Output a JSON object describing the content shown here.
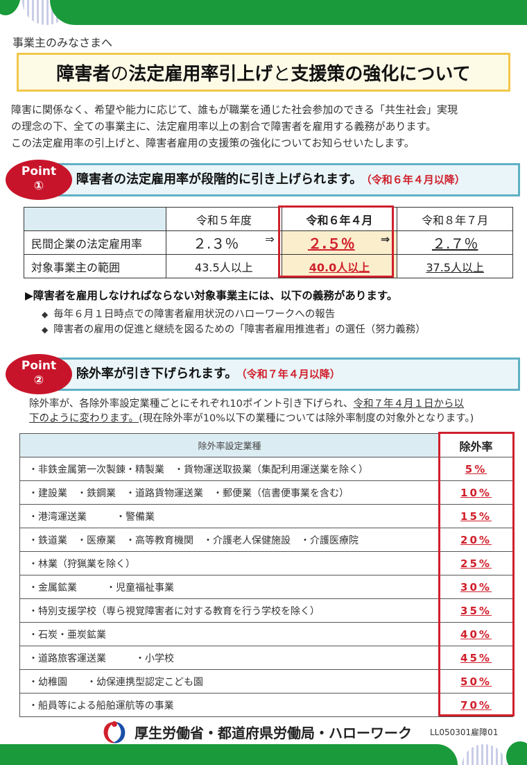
{
  "colors": {
    "brand_green": "#1a9a3a",
    "accent_red": "#d0202c",
    "title_border": "#f2c64a",
    "point_bar_border": "#5fb0c4"
  },
  "header": {
    "greeting": "事業主のみなさまへ",
    "title_part1": "障害者",
    "title_part2": "の",
    "title_part3": "法定雇用率引上げ",
    "title_part4": "と",
    "title_part5": "支援策の強化について"
  },
  "intro": {
    "line1": "障害に関係なく、希望や能力に応じて、誰もが職業を通じた社会参加のできる「共生社会」実現",
    "line2": "の理念の下、全ての事業主に、法定雇用率以上の割合で障害者を雇用する義務があります。",
    "line3": "この法定雇用率の引上げと、障害者雇用の支援策の強化についてお知らせいたします。"
  },
  "point1": {
    "badge_word": "Point",
    "badge_number": "①",
    "heading": "障害者の法定雇用率が段階的に引き上げられます。",
    "date": "（令和６年４月以降）"
  },
  "rate_table": {
    "columns": [
      "令和５年度",
      "令和６年４月",
      "令和８年７月"
    ],
    "row1_label": "民間企業の法定雇用率",
    "row1_values": [
      "２.３％",
      "２.５％",
      "２.７％"
    ],
    "arrow": "⇒",
    "row2_label": "対象事業主の範囲",
    "row2_values": [
      "43.5人以上",
      "40.0人以上",
      "37.5人以上"
    ]
  },
  "duties": {
    "heading": "▶障害者を雇用しなければならない対象事業主には、以下の義務があります。",
    "items": [
      "毎年６月１日時点での障害者雇用状況のハローワークへの報告",
      "障害者の雇用の促進と継続を図るための「障害者雇用推進者」の選任（努力義務）"
    ]
  },
  "point2": {
    "badge_word": "Point",
    "badge_number": "②",
    "heading": "除外率が引き下げられます。",
    "date": "（令和７年４月以降）"
  },
  "exclusion_intro": {
    "part1": "除外率が、各除外率設定業種ごとにそれぞれ10ポイント引き下げられ、",
    "part2_underlined": "令和７年４月１日から以",
    "part3_underlined": "下のように変わります。",
    "part4": "(現在除外率が10%以下の業種については除外率制度の対象外となります。)"
  },
  "exclusion_table": {
    "header_industry": "除外率設定業種",
    "header_rate": "除外率",
    "rows": [
      {
        "industry": "・非鉄金属第一次製錬・精製業　・貨物運送取扱業（集配利用運送業を除く）",
        "rate": "5%"
      },
      {
        "industry": "・建設業　・鉄鋼業　・道路貨物運送業　・郵便業（信書便事業を含む）",
        "rate": "10%"
      },
      {
        "industry": "・港湾運送業　　　・警備業",
        "rate": "15%"
      },
      {
        "industry": "・鉄道業　・医療業　・高等教育機関　・介護老人保健施設　・介護医療院",
        "rate": "20%"
      },
      {
        "industry": "・林業（狩猟業を除く）",
        "rate": "25%"
      },
      {
        "industry": "・金属鉱業　　　・児童福祉事業",
        "rate": "30%"
      },
      {
        "industry": "・特別支援学校（専ら視覚障害者に対する教育を行う学校を除く）",
        "rate": "35%"
      },
      {
        "industry": "・石炭・亜炭鉱業",
        "rate": "40%"
      },
      {
        "industry": "・道路旅客運送業　　　・小学校",
        "rate": "45%"
      },
      {
        "industry": "・幼稚園　　・幼保連携型認定こども園",
        "rate": "50%"
      },
      {
        "industry": "・船員等による船舶運航等の事業",
        "rate": "70%"
      }
    ]
  },
  "footer": {
    "ministry": "厚生労働省・都道府県労働局・ハローワーク",
    "code": "LL050301雇障01",
    "logo_icon": "mhlw-logo-icon"
  }
}
